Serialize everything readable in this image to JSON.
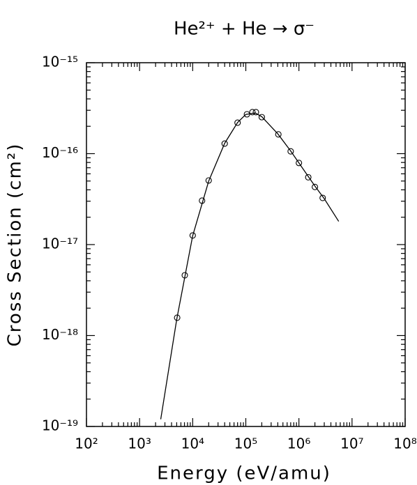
{
  "chart_data": {
    "type": "scatter",
    "title": "He²⁺ + He → σ⁻",
    "x_label": "Energy (eV/amu)",
    "y_label": "Cross Section (cm²)",
    "log_x": true,
    "log_y": true,
    "minor_ticks": true,
    "color": "#000000",
    "xlim": [
      100,
      100000000
    ],
    "ylim": [
      1e-19,
      1e-15
    ],
    "xticks": [
      {
        "value": 100,
        "label": "10²"
      },
      {
        "value": 1000,
        "label": "10³"
      },
      {
        "value": 10000,
        "label": "10⁴"
      },
      {
        "value": 100000,
        "label": "10⁵"
      },
      {
        "value": 1000000,
        "label": "10⁶"
      },
      {
        "value": 10000000,
        "label": "10⁷"
      },
      {
        "value": 100000000,
        "label": "10⁸"
      }
    ],
    "yticks": [
      {
        "value": 1e-19,
        "label": "10⁻¹⁹"
      },
      {
        "value": 1e-18,
        "label": "10⁻¹⁸"
      },
      {
        "value": 1e-17,
        "label": "10⁻¹⁷"
      },
      {
        "value": 1e-16,
        "label": "10⁻¹⁶"
      },
      {
        "value": 1e-15,
        "label": "10⁻¹⁵"
      }
    ],
    "series": [
      {
        "style": "markers",
        "marker": "circle",
        "x": [
          5100,
          7100,
          10000,
          15000,
          20000,
          40000,
          70000,
          105000,
          133000,
          155000,
          200000,
          410000,
          700000,
          1000000,
          1500000,
          2000000,
          2800000
        ],
        "values": [
          1.57e-18,
          4.6e-18,
          1.26e-17,
          3.04e-17,
          5.07e-17,
          1.29e-16,
          2.19e-16,
          2.71e-16,
          2.86e-16,
          2.86e-16,
          2.52e-16,
          1.63e-16,
          1.06e-16,
          7.9e-17,
          5.5e-17,
          4.3e-17,
          3.26e-17
        ]
      },
      {
        "style": "line",
        "x": [
          2500,
          5000,
          10000,
          20000,
          40000,
          70000,
          100000,
          150000,
          200000,
          400000,
          700000,
          1000000,
          2000000,
          3000000,
          5600000
        ],
        "values": [
          1.2e-19,
          1.5e-18,
          1.25e-17,
          5e-17,
          1.3e-16,
          2.2e-16,
          2.7e-16,
          2.8e-16,
          2.55e-16,
          1.65e-16,
          1.07e-16,
          7.9e-17,
          4.4e-17,
          3.2e-17,
          1.8e-17
        ]
      }
    ]
  }
}
